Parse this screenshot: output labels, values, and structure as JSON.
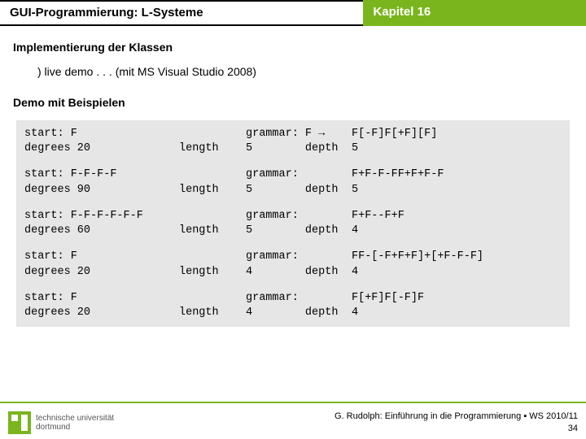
{
  "header": {
    "title_left": "GUI-Programmierung: L-Systeme",
    "title_right": "Kapitel 16"
  },
  "section1": {
    "heading": "Implementierung der Klassen",
    "demo_line": ") live demo . . . (mit MS Visual Studio 2008)"
  },
  "section2": {
    "heading": "Demo mit Beispielen"
  },
  "examples": [
    {
      "r1a": "start: F",
      "r1b": "",
      "r1c": "grammar: F →",
      "r1d": "F[-F]F[+F][F]",
      "r2a": "degrees 20",
      "r2b": "length",
      "r2c": "5        depth",
      "r2d": "5"
    },
    {
      "r1a": "start: F-F-F-F",
      "r1b": "",
      "r1c": "grammar:",
      "r1d": "F+F-F-FF+F+F-F",
      "r2a": "degrees 90",
      "r2b": "length",
      "r2c": "5        depth",
      "r2d": "5"
    },
    {
      "r1a": "start: F-F-F-F-F-F",
      "r1b": "",
      "r1c": "grammar:",
      "r1d": "F+F--F+F",
      "r2a": "degrees 60",
      "r2b": "length",
      "r2c": "5        depth",
      "r2d": "4"
    },
    {
      "r1a": "start: F",
      "r1b": "",
      "r1c": "grammar:",
      "r1d": "FF-[-F+F+F]+[+F-F-F]",
      "r2a": "degrees 20",
      "r2b": "length",
      "r2c": "4        depth",
      "r2d": "4"
    },
    {
      "r1a": "start: F",
      "r1b": "",
      "r1c": "grammar:",
      "r1d": "F[+F]F[-F]F",
      "r2a": "degrees 20",
      "r2b": "length",
      "r2c": "4        depth",
      "r2d": "4"
    }
  ],
  "footer": {
    "line1": "G. Rudolph: Einführung in die Programmierung ▪ WS 2010/11",
    "line2": "34"
  },
  "logo": {
    "line1": "technische universität",
    "line2": "dortmund"
  }
}
